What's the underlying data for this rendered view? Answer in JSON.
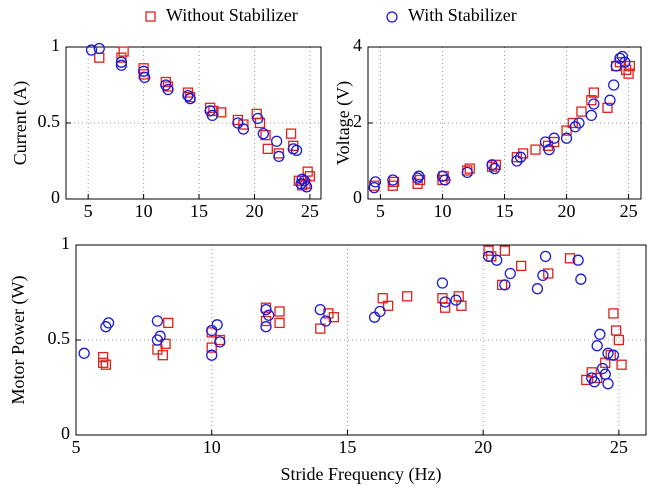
{
  "chart_data": [
    {
      "type": "scatter",
      "ylabel": "Current (A)",
      "xlim": [
        3,
        26
      ],
      "ylim": [
        0,
        1
      ],
      "xticks": [
        5,
        10,
        15,
        20,
        25
      ],
      "yticks": [
        0,
        0.5,
        1
      ],
      "grid": true,
      "series": [
        {
          "name": "Without Stabilizer",
          "color": "#e0201b",
          "marker": "square",
          "x": [
            6,
            8,
            8.2,
            10,
            10,
            12,
            12.2,
            14,
            14.2,
            16,
            16.3,
            17,
            18.5,
            19,
            20.2,
            20.5,
            21,
            21.2,
            22.2,
            23.3,
            23.5,
            24,
            24.3,
            24.6,
            24.8,
            25
          ],
          "values": [
            0.93,
            0.93,
            0.97,
            0.86,
            0.82,
            0.77,
            0.74,
            0.7,
            0.67,
            0.6,
            0.58,
            0.57,
            0.52,
            0.49,
            0.56,
            0.5,
            0.42,
            0.33,
            0.3,
            0.43,
            0.35,
            0.12,
            0.09,
            0.1,
            0.18,
            0.15
          ]
        },
        {
          "name": "With Stabilizer",
          "color": "#1c1cd6",
          "marker": "circle",
          "x": [
            5.3,
            6,
            8,
            8,
            10,
            10.1,
            12,
            12.2,
            14,
            14.2,
            16,
            16.2,
            18.5,
            19,
            20.3,
            20.8,
            22,
            22.2,
            23.5,
            23.8,
            24.2,
            24.5,
            24.7,
            24.3
          ],
          "values": [
            0.98,
            0.99,
            0.9,
            0.88,
            0.84,
            0.8,
            0.75,
            0.72,
            0.68,
            0.66,
            0.58,
            0.55,
            0.5,
            0.46,
            0.53,
            0.43,
            0.38,
            0.28,
            0.33,
            0.32,
            0.1,
            0.12,
            0.08,
            0.13
          ]
        }
      ]
    },
    {
      "type": "scatter",
      "ylabel": "Voltage (V)",
      "xlim": [
        4,
        26
      ],
      "ylim": [
        0,
        4
      ],
      "xticks": [
        5,
        10,
        15,
        20,
        25
      ],
      "yticks": [
        0,
        2,
        4
      ],
      "grid": true,
      "series": [
        {
          "name": "Without Stabilizer",
          "color": "#e0201b",
          "marker": "square",
          "x": [
            4.5,
            6,
            6.1,
            8,
            8.2,
            10,
            10.1,
            12,
            12.2,
            14,
            14.3,
            16,
            16.5,
            17.5,
            18.5,
            19,
            20,
            20.5,
            21.2,
            22,
            22.2,
            23.3,
            24,
            24.3,
            24.8,
            25,
            25.1
          ],
          "values": [
            0.35,
            0.35,
            0.45,
            0.4,
            0.5,
            0.5,
            0.6,
            0.75,
            0.8,
            0.85,
            0.9,
            1.1,
            1.2,
            1.3,
            1.4,
            1.5,
            1.8,
            2,
            2.3,
            2.6,
            2.8,
            2.4,
            3.5,
            3.6,
            3.4,
            3.3,
            3.5
          ]
        },
        {
          "name": "With Stabilizer",
          "color": "#1c1cd6",
          "marker": "circle",
          "x": [
            4.5,
            4.6,
            6,
            8,
            8.1,
            10,
            10.2,
            12,
            14,
            14.2,
            16,
            16.3,
            18.3,
            18.6,
            19,
            20,
            20.7,
            21,
            22,
            22.2,
            23.5,
            23.8,
            24,
            24.3,
            24.5,
            24.7
          ],
          "values": [
            0.3,
            0.45,
            0.5,
            0.55,
            0.6,
            0.6,
            0.5,
            0.7,
            0.9,
            0.8,
            1,
            1.1,
            1.5,
            1.3,
            1.6,
            1.6,
            1.9,
            2,
            2.2,
            2.5,
            2.6,
            3,
            3.5,
            3.7,
            3.75,
            3.6
          ]
        }
      ]
    },
    {
      "type": "scatter",
      "ylabel": "Motor Power (W)",
      "xlabel": "Stride Frequency (Hz)",
      "xlim": [
        5,
        26
      ],
      "ylim": [
        0,
        1
      ],
      "xticks": [
        5,
        10,
        15,
        20,
        25
      ],
      "yticks": [
        0,
        0.5,
        1
      ],
      "grid": true,
      "series": [
        {
          "name": "Without Stabilizer",
          "color": "#e0201b",
          "marker": "square",
          "x": [
            6,
            6,
            6.1,
            8,
            8.2,
            8.4,
            8.3,
            10,
            10,
            10.3,
            12,
            12,
            12.5,
            12.5,
            14,
            14.3,
            14.5,
            16.3,
            16.5,
            17.2,
            18.5,
            18.6,
            19.2,
            19.1,
            20.2,
            20.3,
            20.8,
            20.7,
            21.4,
            22.4,
            23.2,
            23.8,
            24,
            24.2,
            24.5,
            24.7,
            24.8,
            24.9,
            25,
            25.1
          ],
          "values": [
            0.38,
            0.41,
            0.37,
            0.45,
            0.42,
            0.59,
            0.48,
            0.46,
            0.54,
            0.5,
            0.67,
            0.6,
            0.65,
            0.59,
            0.56,
            0.64,
            0.62,
            0.72,
            0.68,
            0.73,
            0.72,
            0.67,
            0.68,
            0.73,
            0.97,
            0.94,
            0.97,
            0.79,
            0.89,
            0.85,
            0.93,
            0.29,
            0.33,
            0.3,
            0.38,
            0.42,
            0.64,
            0.55,
            0.5,
            0.37
          ]
        },
        {
          "name": "With Stabilizer",
          "color": "#1c1cd6",
          "marker": "circle",
          "x": [
            5.3,
            6.1,
            6.2,
            8,
            8,
            8.1,
            10,
            10,
            10.2,
            10.3,
            12,
            12.1,
            12,
            14,
            14.2,
            16,
            16.2,
            18.5,
            18.6,
            19,
            20.2,
            20.5,
            20.8,
            21,
            22,
            22.2,
            22.3,
            23.5,
            23.6,
            24,
            24.1,
            24.2,
            24.3,
            24.4,
            24.6,
            24.6,
            24.8,
            24.5
          ],
          "values": [
            0.43,
            0.57,
            0.59,
            0.5,
            0.6,
            0.52,
            0.42,
            0.55,
            0.58,
            0.49,
            0.57,
            0.63,
            0.66,
            0.66,
            0.6,
            0.62,
            0.65,
            0.8,
            0.7,
            0.71,
            0.94,
            0.92,
            0.79,
            0.85,
            0.77,
            0.84,
            0.94,
            0.92,
            0.82,
            0.3,
            0.28,
            0.47,
            0.53,
            0.35,
            0.27,
            0.43,
            0.42,
            0.32
          ]
        }
      ]
    }
  ]
}
